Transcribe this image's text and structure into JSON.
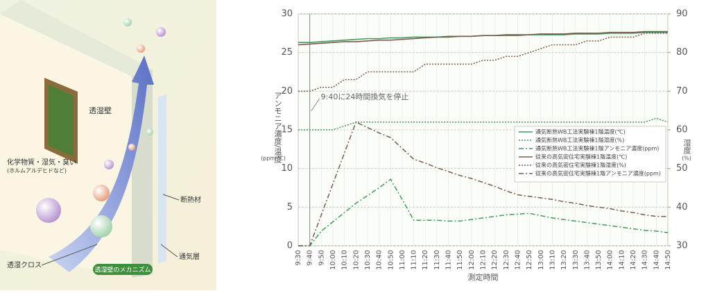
{
  "illustration": {
    "wall_title": "透湿壁",
    "chemicals": "化学物質・湿気・臭い",
    "chemicals_note": "(ホルムアルデヒドなど)",
    "insulation": "断熱材",
    "air_layer": "通気層",
    "cloth": "透湿クロス",
    "badge": "透湿壁のメカニズム"
  },
  "chart_data": {
    "type": "line",
    "annotation": "9:40に24時間換気を停止",
    "annotation_at": "9:40",
    "x_label": "測定時間",
    "y_label": "アンモニア濃度/温度",
    "y_unit": "(ppm·℃)",
    "y2_label": "湿度",
    "y2_unit": "(%)",
    "categories": [
      "9:30",
      "9:40",
      "9:50",
      "10:00",
      "10:10",
      "10:20",
      "10:30",
      "10:40",
      "10:50",
      "11:00",
      "11:10",
      "11:20",
      "11:30",
      "11:40",
      "11:50",
      "12:00",
      "12:10",
      "12:20",
      "12:30",
      "12:40",
      "12:50",
      "13:00",
      "13:10",
      "13:20",
      "13:30",
      "13:40",
      "13:50",
      "14:00",
      "14:10",
      "14:20",
      "14:30",
      "14:40",
      "14:50"
    ],
    "ylim": [
      0,
      30
    ],
    "yticks": [
      0,
      5,
      10,
      15,
      20,
      25,
      30
    ],
    "y2lim": [
      30,
      90
    ],
    "y2ticks": [
      30,
      40,
      50,
      60,
      70,
      80,
      90
    ],
    "grid": true,
    "legend": "right",
    "series": [
      {
        "name": "通気断熱WB工法実験棟1階温度(℃)",
        "color": "#3f9b5e",
        "style": "solid",
        "axis": "y",
        "values": [
          26.3,
          26.3,
          26.4,
          26.5,
          26.6,
          26.7,
          26.8,
          26.8,
          26.9,
          26.9,
          27.0,
          27.0,
          27.0,
          27.1,
          27.1,
          27.1,
          27.2,
          27.2,
          27.2,
          27.2,
          27.3,
          27.3,
          27.3,
          27.3,
          27.4,
          27.4,
          27.4,
          27.5,
          27.5,
          27.5,
          27.6,
          27.6,
          27.6
        ]
      },
      {
        "name": "通気断熱WB工法実験棟1階湿度(%)",
        "color": "#3f9b5e",
        "style": "dotted",
        "axis": "y2",
        "values": [
          60,
          60,
          60,
          60,
          61,
          62,
          62,
          62,
          62,
          62,
          62,
          62,
          62,
          62,
          62,
          62,
          62,
          62,
          62,
          62,
          62,
          62,
          62,
          62,
          62,
          62,
          62,
          62,
          62,
          62,
          62,
          63,
          62
        ]
      },
      {
        "name": "通気断熱WB工法実験棟1階アンモニア濃度(ppm)",
        "color": "#3f9b5e",
        "style": "dashdot",
        "axis": "y",
        "values": [
          0,
          0,
          1.9,
          3.1,
          4.3,
          5.5,
          6.5,
          7.5,
          8.6,
          6,
          3.3,
          3.3,
          3.3,
          3.2,
          3.2,
          3.4,
          3.6,
          3.8,
          4.0,
          4.1,
          4.2,
          3.9,
          3.6,
          3.4,
          3.2,
          3.0,
          2.8,
          2.6,
          2.4,
          2.2,
          2.0,
          1.9,
          1.7
        ]
      },
      {
        "name": "従来の高気密住宅実験棟1階温度(℃)",
        "color": "#7a5a4c",
        "style": "solid",
        "axis": "y",
        "values": [
          26.0,
          26.1,
          26.2,
          26.3,
          26.4,
          26.4,
          26.5,
          26.6,
          26.6,
          26.7,
          26.8,
          26.9,
          27.0,
          27.0,
          27.1,
          27.1,
          27.2,
          27.2,
          27.3,
          27.3,
          27.3,
          27.4,
          27.4,
          27.4,
          27.5,
          27.5,
          27.5,
          27.6,
          27.6,
          27.6,
          27.7,
          27.7,
          27.7
        ]
      },
      {
        "name": "従来の高気密住宅実験棟1階湿度(%)",
        "color": "#7a5a4c",
        "style": "dotted",
        "axis": "y2",
        "values": [
          70,
          70,
          71,
          71,
          73,
          73,
          75,
          75,
          75,
          75,
          75,
          77,
          77,
          77,
          77,
          77,
          78,
          78,
          79,
          79,
          80,
          81,
          82,
          82,
          82,
          83,
          83,
          84,
          84,
          84,
          85,
          85,
          85
        ]
      },
      {
        "name": "従来の高気密住宅実験棟1階アンモニア濃度(ppm)",
        "color": "#7a5a4c",
        "style": "dashdot",
        "axis": "y",
        "values": [
          0,
          0,
          4,
          8,
          12,
          16,
          15.3,
          14.6,
          14.0,
          12.6,
          11.2,
          10.7,
          10.1,
          9.6,
          9.1,
          8.7,
          8.2,
          7.7,
          7.1,
          6.6,
          6.4,
          6.2,
          6.0,
          5.7,
          5.5,
          5.2,
          5.0,
          4.8,
          4.5,
          4.3,
          4.0,
          3.8,
          3.8
        ]
      }
    ]
  }
}
